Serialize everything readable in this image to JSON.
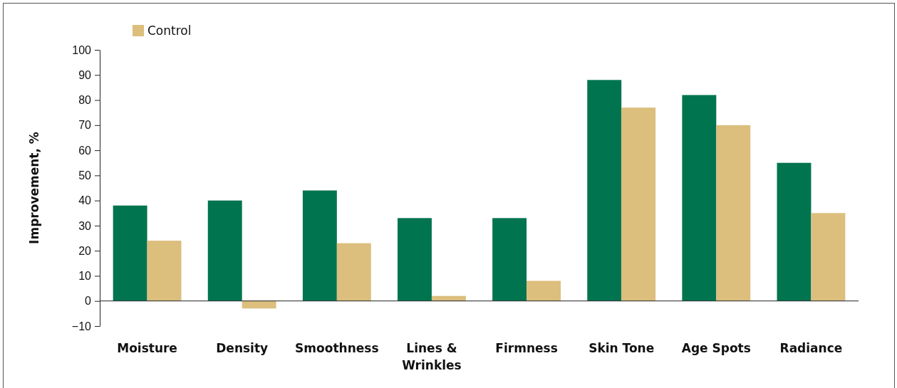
{
  "chart_data": {
    "type": "bar",
    "ylabel": "Improvement, %",
    "categories": [
      "Moisture",
      "Density",
      "Smoothness",
      "Lines & Wrinkles",
      "Firmness",
      "Skin Tone",
      "Age Spots",
      "Radiance"
    ],
    "series": [
      {
        "color": "#00744f",
        "values": [
          38,
          40,
          44,
          33,
          33,
          88,
          82,
          55
        ]
      },
      {
        "name": "Control",
        "color": "#dcbe7d",
        "values": [
          24,
          -3,
          23,
          2,
          8,
          77,
          70,
          35
        ]
      }
    ],
    "ylim": [
      -10,
      100
    ],
    "yticks": [
      {
        "value": -10,
        "label": "−10"
      },
      0,
      10,
      20,
      30,
      40,
      50,
      60,
      70,
      80,
      90,
      100
    ],
    "legend": "top left"
  }
}
